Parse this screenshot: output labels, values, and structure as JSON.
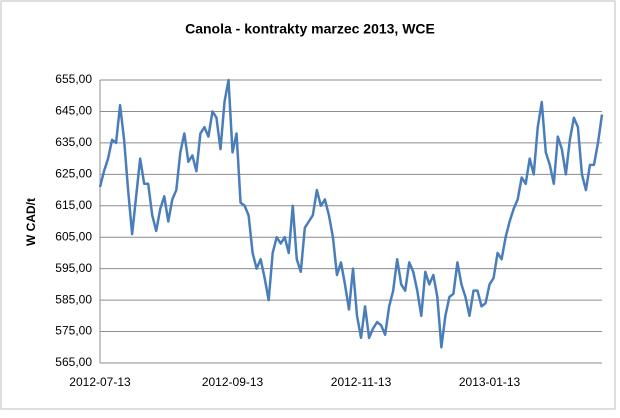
{
  "chart_data": {
    "type": "line",
    "title": "Canola - kontrakty marzec 2013, WCE",
    "y_label": "W CAD/t",
    "categories": [
      "2012-07-13",
      null,
      null,
      null,
      null,
      null,
      null,
      null,
      null,
      null,
      null,
      null,
      null,
      null,
      null,
      null,
      null,
      null,
      null,
      null,
      null,
      null,
      null,
      null,
      null,
      null,
      null,
      null,
      null,
      null,
      null,
      null,
      null,
      "2012-09-13",
      null,
      null,
      null,
      null,
      null,
      null,
      null,
      null,
      null,
      null,
      null,
      null,
      null,
      null,
      null,
      null,
      null,
      null,
      null,
      null,
      null,
      null,
      null,
      null,
      null,
      null,
      null,
      null,
      null,
      null,
      null,
      "2012-11-13",
      null,
      null,
      null,
      null,
      null,
      null,
      null,
      null,
      null,
      null,
      null,
      null,
      null,
      null,
      null,
      null,
      null,
      null,
      null,
      null,
      null,
      null,
      null,
      null,
      null,
      null,
      null,
      null,
      null,
      null,
      null,
      "2013-01-13",
      null,
      null,
      null,
      null,
      null,
      null,
      null,
      null,
      null,
      null,
      null,
      null,
      null,
      null,
      null,
      null,
      null,
      null,
      null,
      null,
      null,
      null,
      null,
      null,
      null,
      null,
      null,
      null
    ],
    "values": [
      621,
      626,
      630,
      636,
      635,
      647,
      636,
      620,
      606,
      618,
      630,
      622,
      622,
      612,
      607,
      614,
      618,
      610,
      617,
      620,
      632,
      638,
      629,
      631,
      626,
      638,
      640,
      637,
      645,
      643,
      633,
      648,
      655,
      632,
      638,
      616,
      615,
      612,
      600,
      595,
      598,
      592,
      585,
      600,
      605,
      603,
      605,
      600,
      615,
      598,
      594,
      608,
      610,
      612,
      620,
      615,
      617,
      612,
      605,
      593,
      597,
      590,
      582,
      595,
      580,
      573,
      583,
      573,
      576,
      578,
      577,
      574,
      583,
      588,
      598,
      590,
      588,
      597,
      594,
      588,
      580,
      594,
      590,
      593,
      586,
      570,
      580,
      586,
      587,
      597,
      590,
      586,
      580,
      588,
      588,
      583,
      584,
      590,
      592,
      600,
      598,
      605,
      610,
      614,
      617,
      624,
      622,
      630,
      625,
      640,
      648,
      632,
      628,
      622,
      637,
      633,
      625,
      636,
      643,
      640,
      625,
      620,
      628,
      628,
      635,
      644
    ],
    "color": "#4a7ebb",
    "ylim": [
      565,
      655
    ],
    "yticks": [
      {
        "value": 565,
        "label": "565,00"
      },
      {
        "value": 575,
        "label": "575,00"
      },
      {
        "value": 585,
        "label": "585,00"
      },
      {
        "value": 595,
        "label": "595,00"
      },
      {
        "value": 605,
        "label": "605,00"
      },
      {
        "value": 615,
        "label": "615,00"
      },
      {
        "value": 625,
        "label": "625,00"
      },
      {
        "value": 635,
        "label": "635,00"
      },
      {
        "value": 645,
        "label": "645,00"
      },
      {
        "value": 655,
        "label": "655,00"
      }
    ],
    "grid": true
  }
}
